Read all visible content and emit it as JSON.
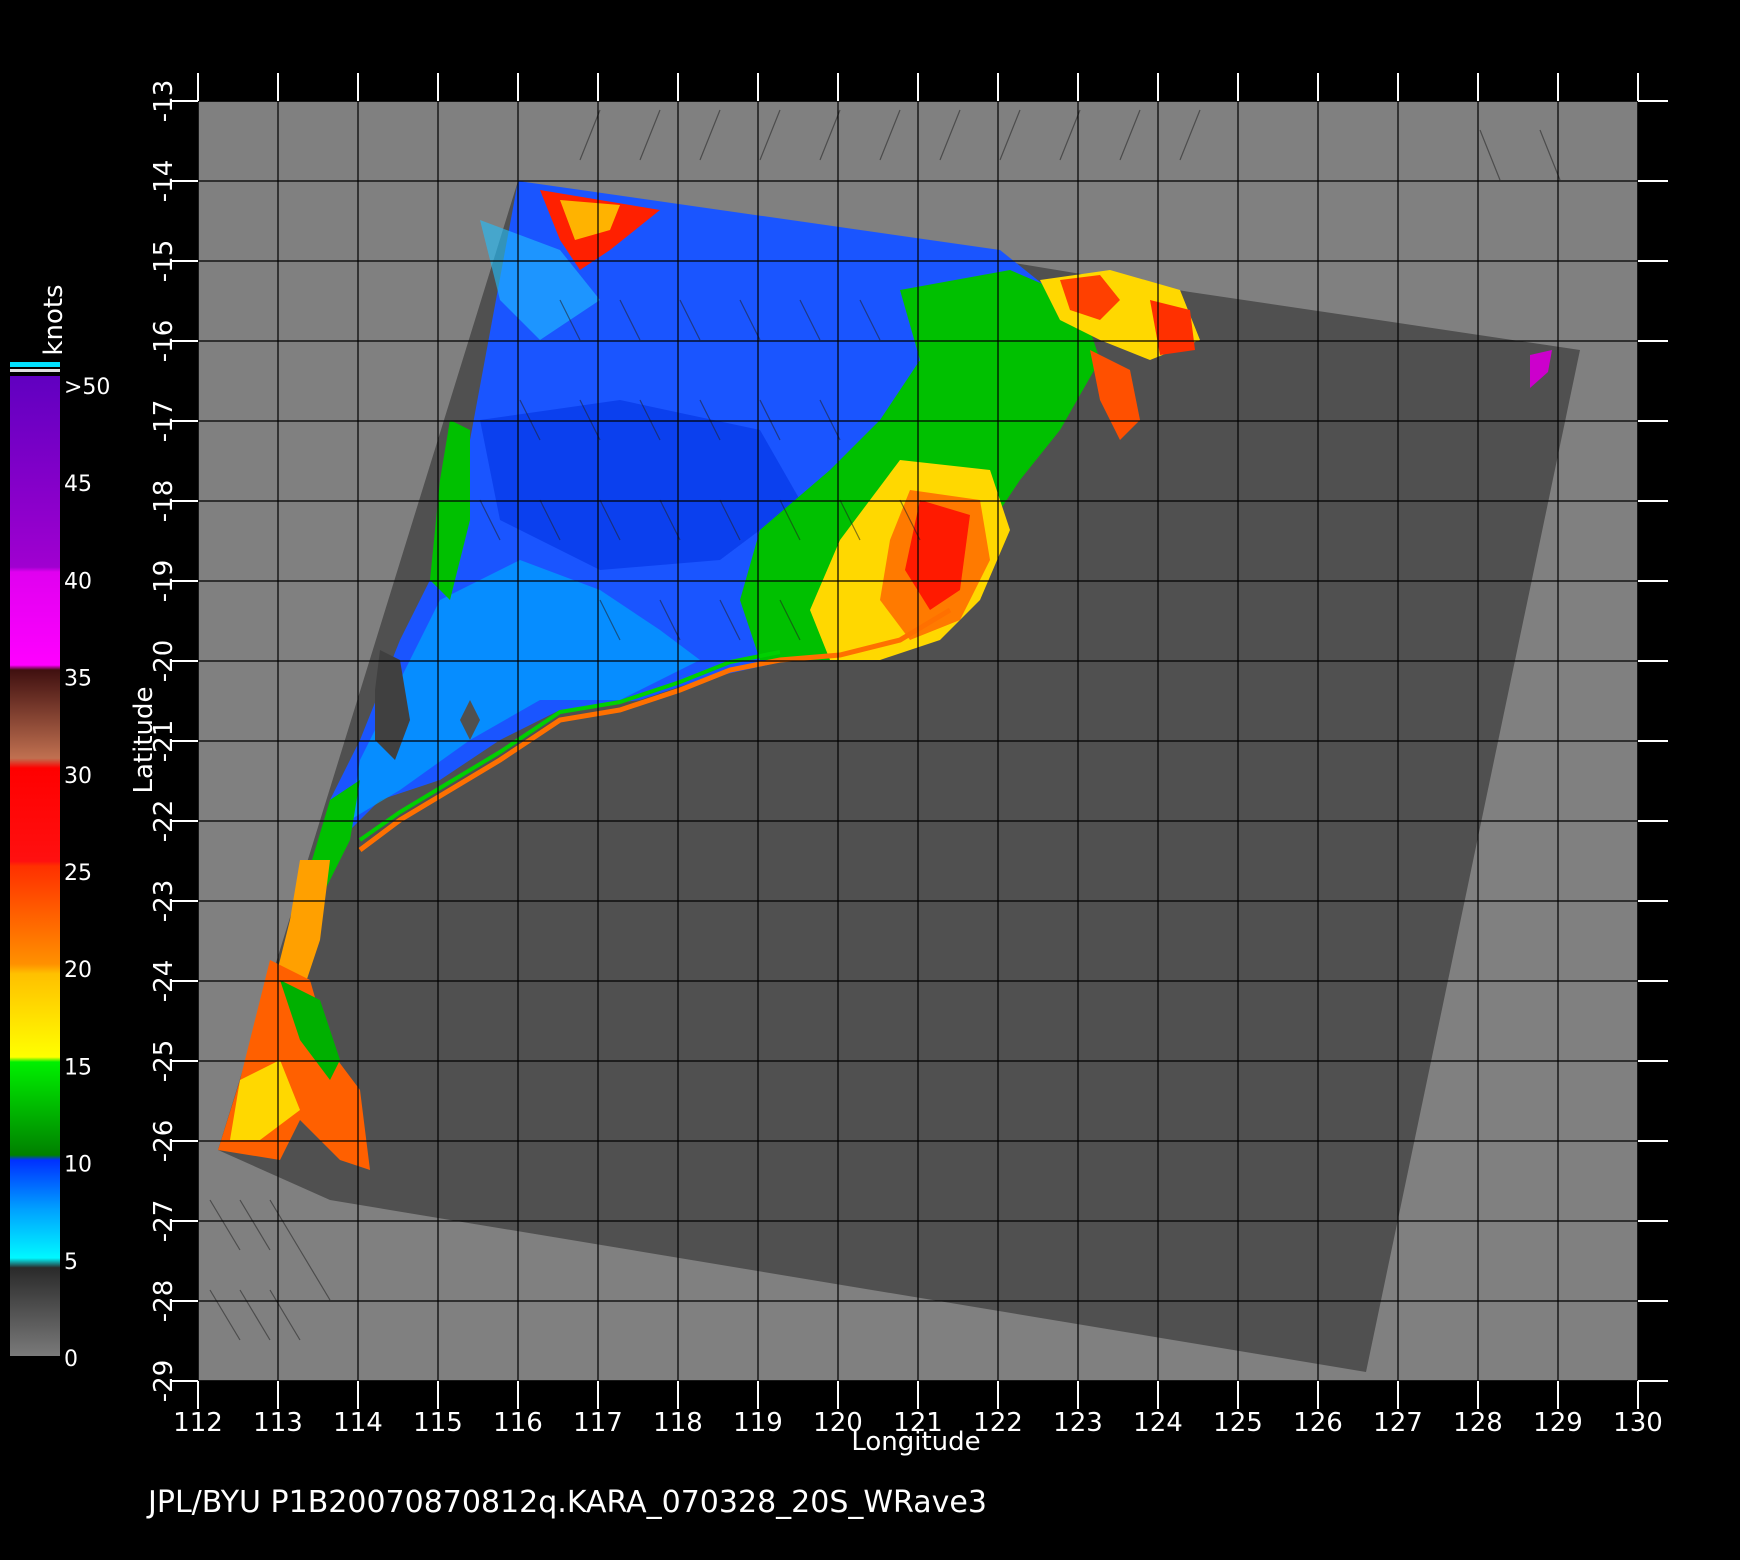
{
  "map": {
    "x_axis": {
      "label": "Longitude",
      "ticks": [
        "112",
        "113",
        "114",
        "115",
        "116",
        "117",
        "118",
        "119",
        "120",
        "121",
        "122",
        "123",
        "124",
        "125",
        "126",
        "127",
        "128",
        "129",
        "130"
      ]
    },
    "y_axis": {
      "label": "Latitude",
      "ticks": [
        "-13",
        "-14",
        "-15",
        "-16",
        "-17",
        "-18",
        "-19",
        "-20",
        "-21",
        "-22",
        "-23",
        "-24",
        "-25",
        "-26",
        "-27",
        "-28",
        "-29"
      ]
    },
    "grid": true,
    "background_color": "#808080",
    "swath_color": "#505050"
  },
  "colorbar": {
    "title": "knots",
    "labels": [
      ">50",
      "45",
      "40",
      "35",
      "30",
      "25",
      "20",
      "15",
      "10",
      "5",
      "0"
    ],
    "colors": {
      "0-5": "#6a6a6a",
      "5-10": "#00e8f0",
      "10-15": "#0050ff",
      "15-20": "#00c800",
      "20-25": "#ffe000",
      "25-30": "#ff7000",
      "30-35": "#ff1000",
      "35-40": "#8a4030",
      "40-45": "#ff00ff",
      "45-50": "#8000d0"
    }
  },
  "footer": {
    "text": "JPL/BYU  P1B20070870812q.KARA_070328_20S_WRave3"
  }
}
